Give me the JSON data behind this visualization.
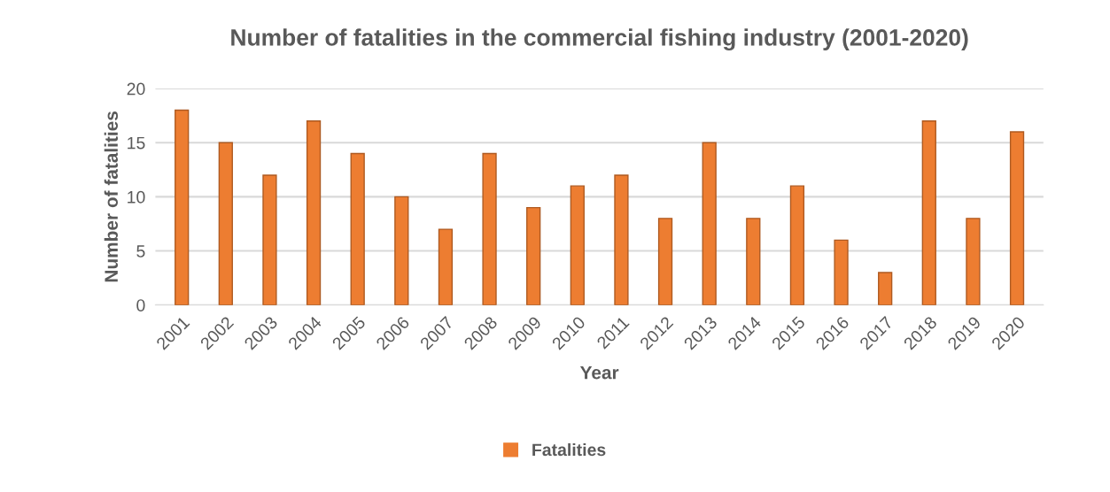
{
  "chart_data": {
    "type": "bar",
    "title": "Number of fatalities in the commercial fishing industry (2001-2020)",
    "xlabel": "Year",
    "ylabel": "Number of fatalities",
    "categories": [
      "2001",
      "2002",
      "2003",
      "2004",
      "2005",
      "2006",
      "2007",
      "2008",
      "2009",
      "2010",
      "2011",
      "2012",
      "2013",
      "2014",
      "2015",
      "2016",
      "2017",
      "2018",
      "2019",
      "2020"
    ],
    "series": [
      {
        "name": "Fatalities",
        "color": "#ed7d31",
        "values": [
          18,
          15,
          12,
          17,
          14,
          10,
          7,
          14,
          9,
          11,
          12,
          8,
          15,
          8,
          11,
          6,
          3,
          17,
          8,
          16
        ]
      }
    ],
    "ylim": [
      0,
      20
    ],
    "yticks": [
      0,
      5,
      10,
      15,
      20
    ],
    "grid": "y",
    "legend": "bottom"
  }
}
